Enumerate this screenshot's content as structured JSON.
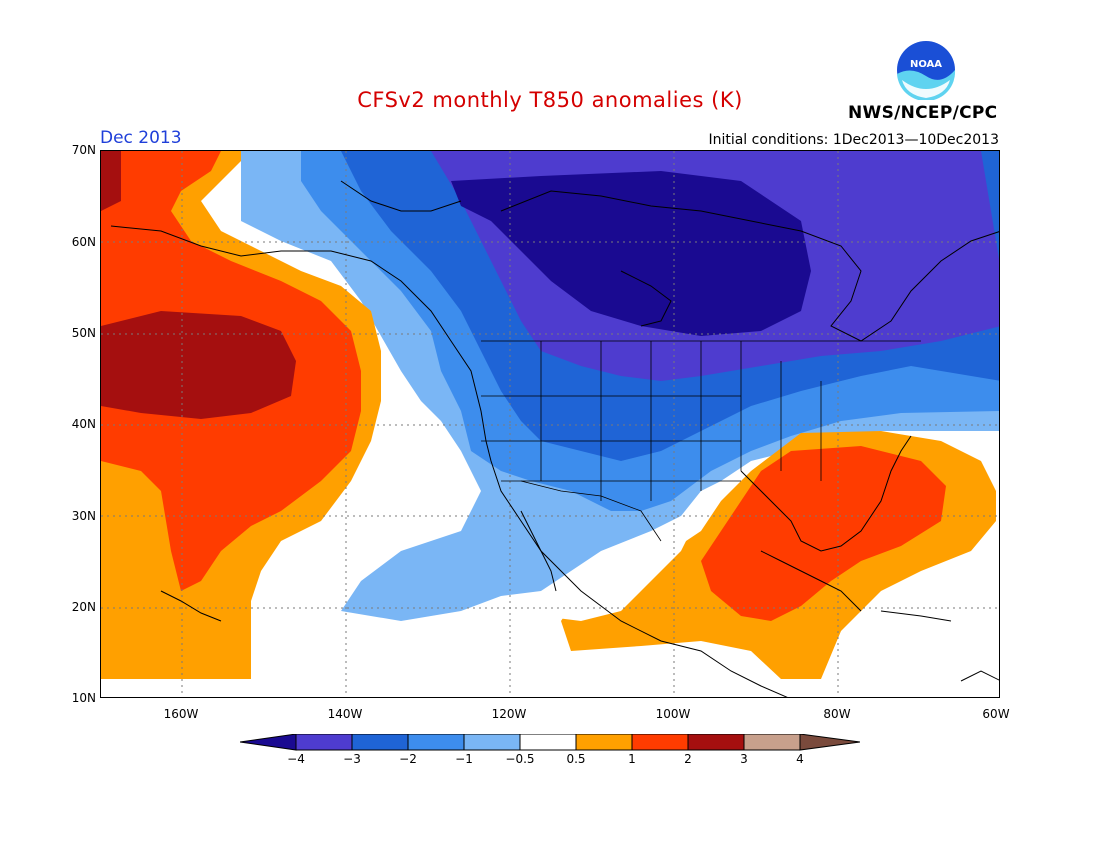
{
  "title": "CFSv2 monthly T850 anomalies (K)",
  "month_label": "Dec 2013",
  "initial_conditions": "Initial conditions: 1Dec2013—10Dec2013",
  "agency": "NWS/NCEP/CPC",
  "logo_text": "NOAA",
  "lat_ticks": [
    "70N",
    "60N",
    "50N",
    "40N",
    "30N",
    "20N",
    "10N"
  ],
  "lon_ticks": [
    "160W",
    "140W",
    "120W",
    "100W",
    "80W",
    "60W"
  ],
  "colorbar": {
    "labels": [
      "−4",
      "−3",
      "−2",
      "−1",
      "−0.5",
      "0.5",
      "1",
      "2",
      "3",
      "4"
    ],
    "colors": [
      "#1a0a91",
      "#4e3ccf",
      "#1f64d6",
      "#3d8ded",
      "#7ab6f5",
      "#ffffff",
      "#ffa000",
      "#ff3c00",
      "#a50f0f",
      "#c8a08c",
      "#7a4a3c"
    ]
  }
}
